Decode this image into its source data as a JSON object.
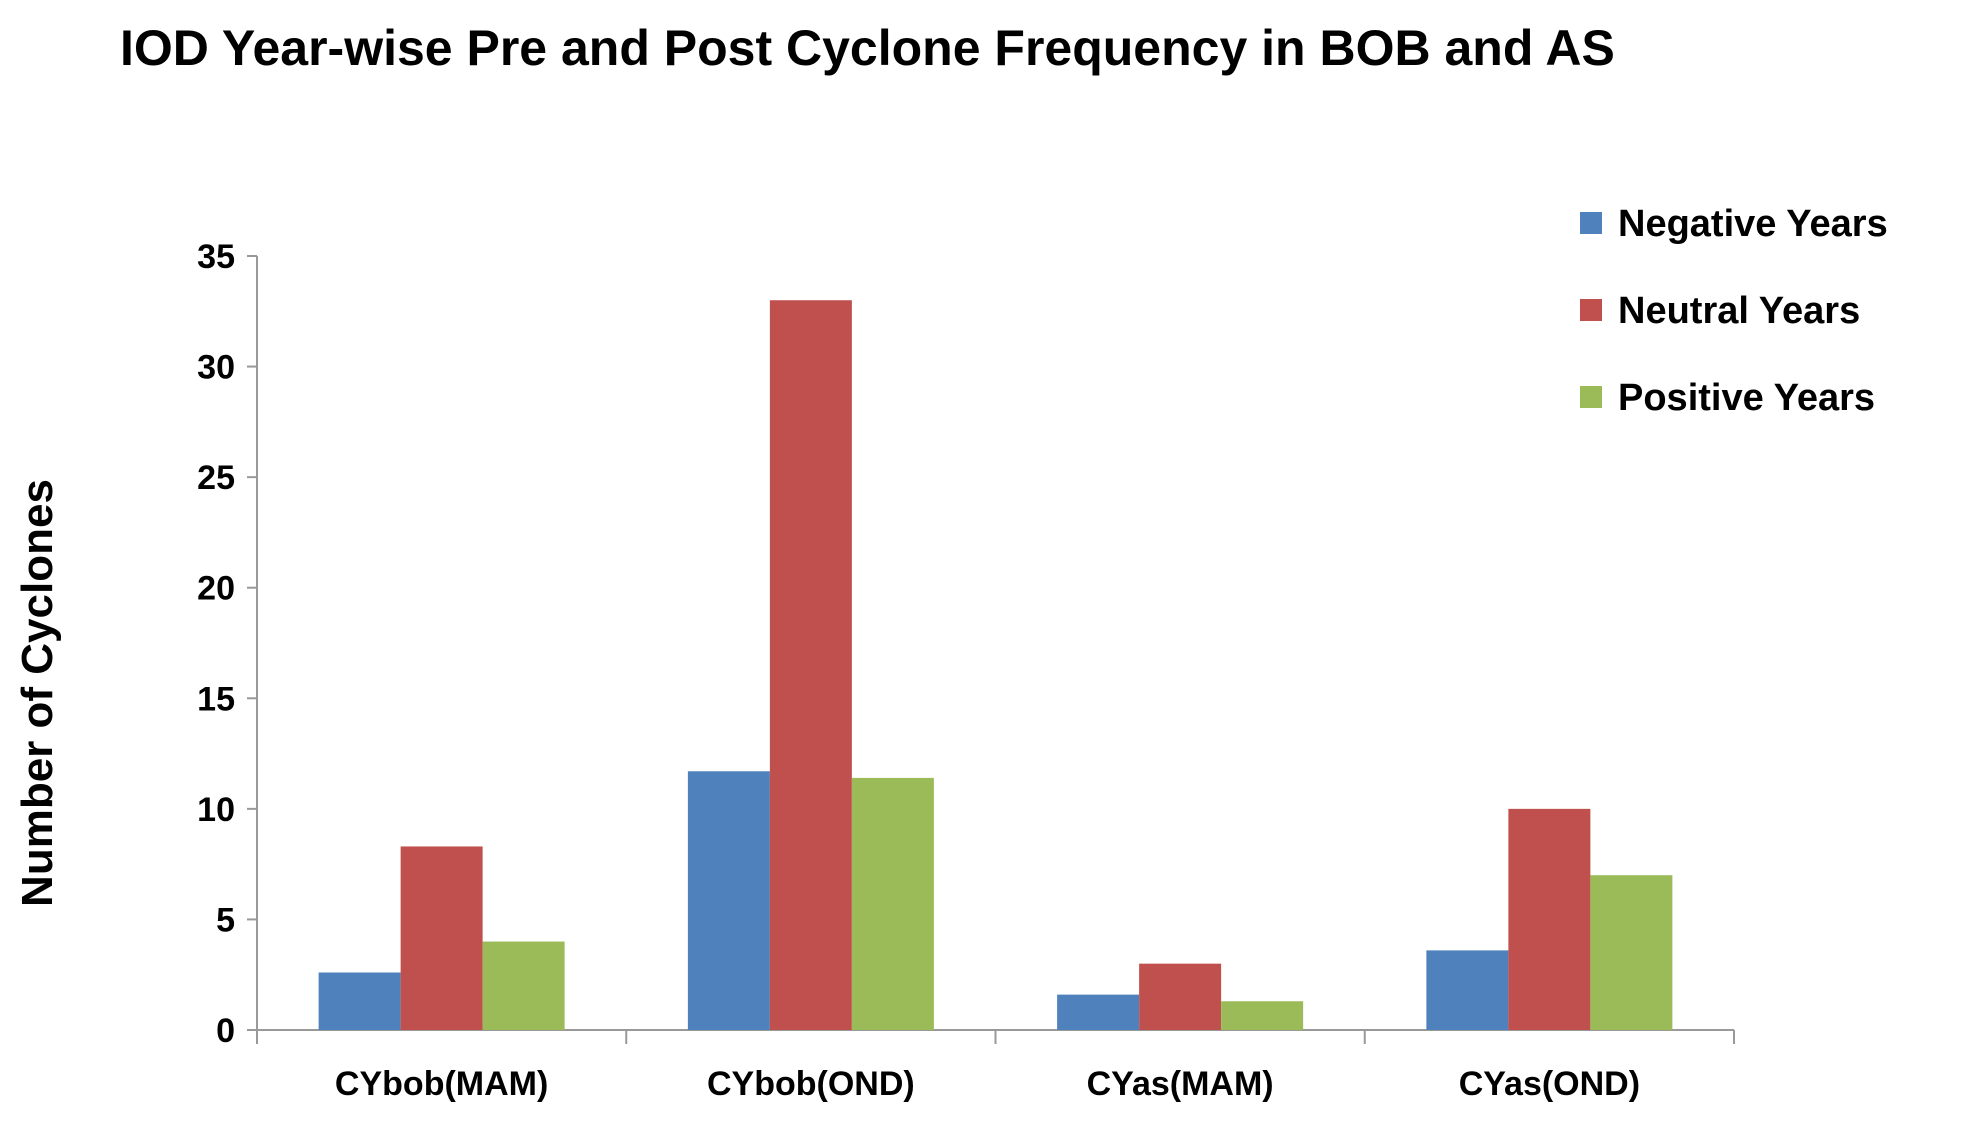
{
  "chart_data": {
    "type": "bar",
    "title": "IOD Year-wise Pre and Post Cyclone Frequency in BOB and AS",
    "xlabel": "",
    "ylabel": "Number of Cyclones",
    "ylim": [
      0,
      35
    ],
    "yticks": [
      "0",
      "5",
      "10",
      "15",
      "20",
      "25",
      "30",
      "35"
    ],
    "grid": false,
    "legend_position": "top-right",
    "categories": [
      "CYbob(MAM)",
      "CYbob(OND)",
      "CYas(MAM)",
      "CYas(OND)"
    ],
    "series": [
      {
        "name": "Negative Years",
        "color": "#4f81bd",
        "values": [
          2.6,
          11.7,
          1.6,
          3.6
        ]
      },
      {
        "name": "Neutral Years",
        "color": "#c0504d",
        "values": [
          8.3,
          33,
          3,
          10
        ]
      },
      {
        "name": "Positive Years",
        "color": "#9bbb59",
        "values": [
          4,
          11.4,
          1.3,
          7
        ]
      }
    ]
  }
}
